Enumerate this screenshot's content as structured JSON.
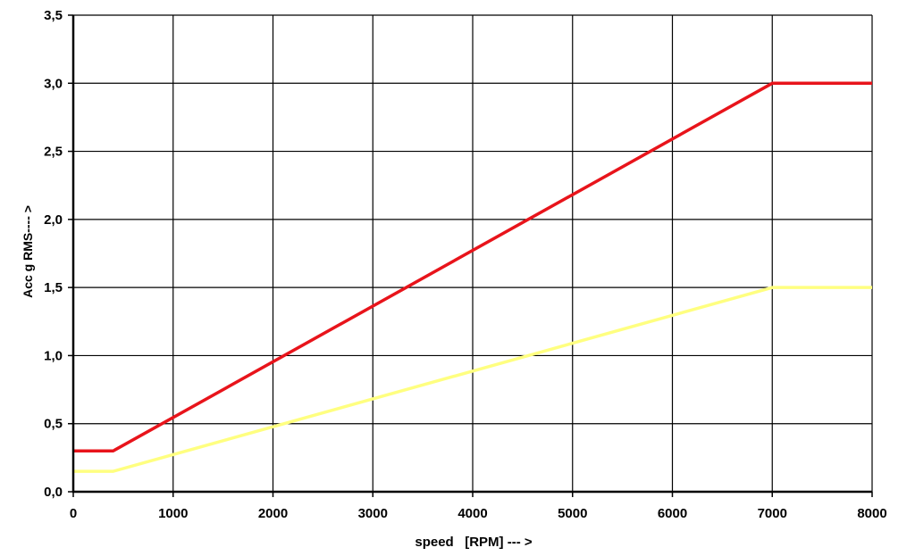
{
  "chart_data": {
    "type": "line",
    "title": "",
    "xlabel": "speed   [RPM] --- >",
    "ylabel": "Acc g RMS---- >",
    "xlim": [
      0,
      8000
    ],
    "ylim": [
      0,
      3.5
    ],
    "xticks": [
      0,
      1000,
      2000,
      3000,
      4000,
      5000,
      6000,
      7000,
      8000
    ],
    "xtick_labels": [
      "0",
      "1000",
      "2000",
      "3000",
      "4000",
      "5000",
      "6000",
      "7000",
      "8000"
    ],
    "yticks": [
      0,
      0.5,
      1.0,
      1.5,
      2.0,
      2.5,
      3.0,
      3.5
    ],
    "ytick_labels": [
      "0,0",
      "0,5",
      "1,0",
      "1,5",
      "2,0",
      "2,5",
      "3,0",
      "3,5"
    ],
    "grid": true,
    "legend": "none",
    "series": [
      {
        "color": "#e8141b",
        "x": [
          0,
          400,
          7000,
          8000
        ],
        "y": [
          0.3,
          0.3,
          3.0,
          3.0
        ]
      },
      {
        "color": "#ffff80",
        "x": [
          0,
          400,
          7000,
          8000
        ],
        "y": [
          0.15,
          0.15,
          1.5,
          1.5
        ]
      }
    ]
  }
}
